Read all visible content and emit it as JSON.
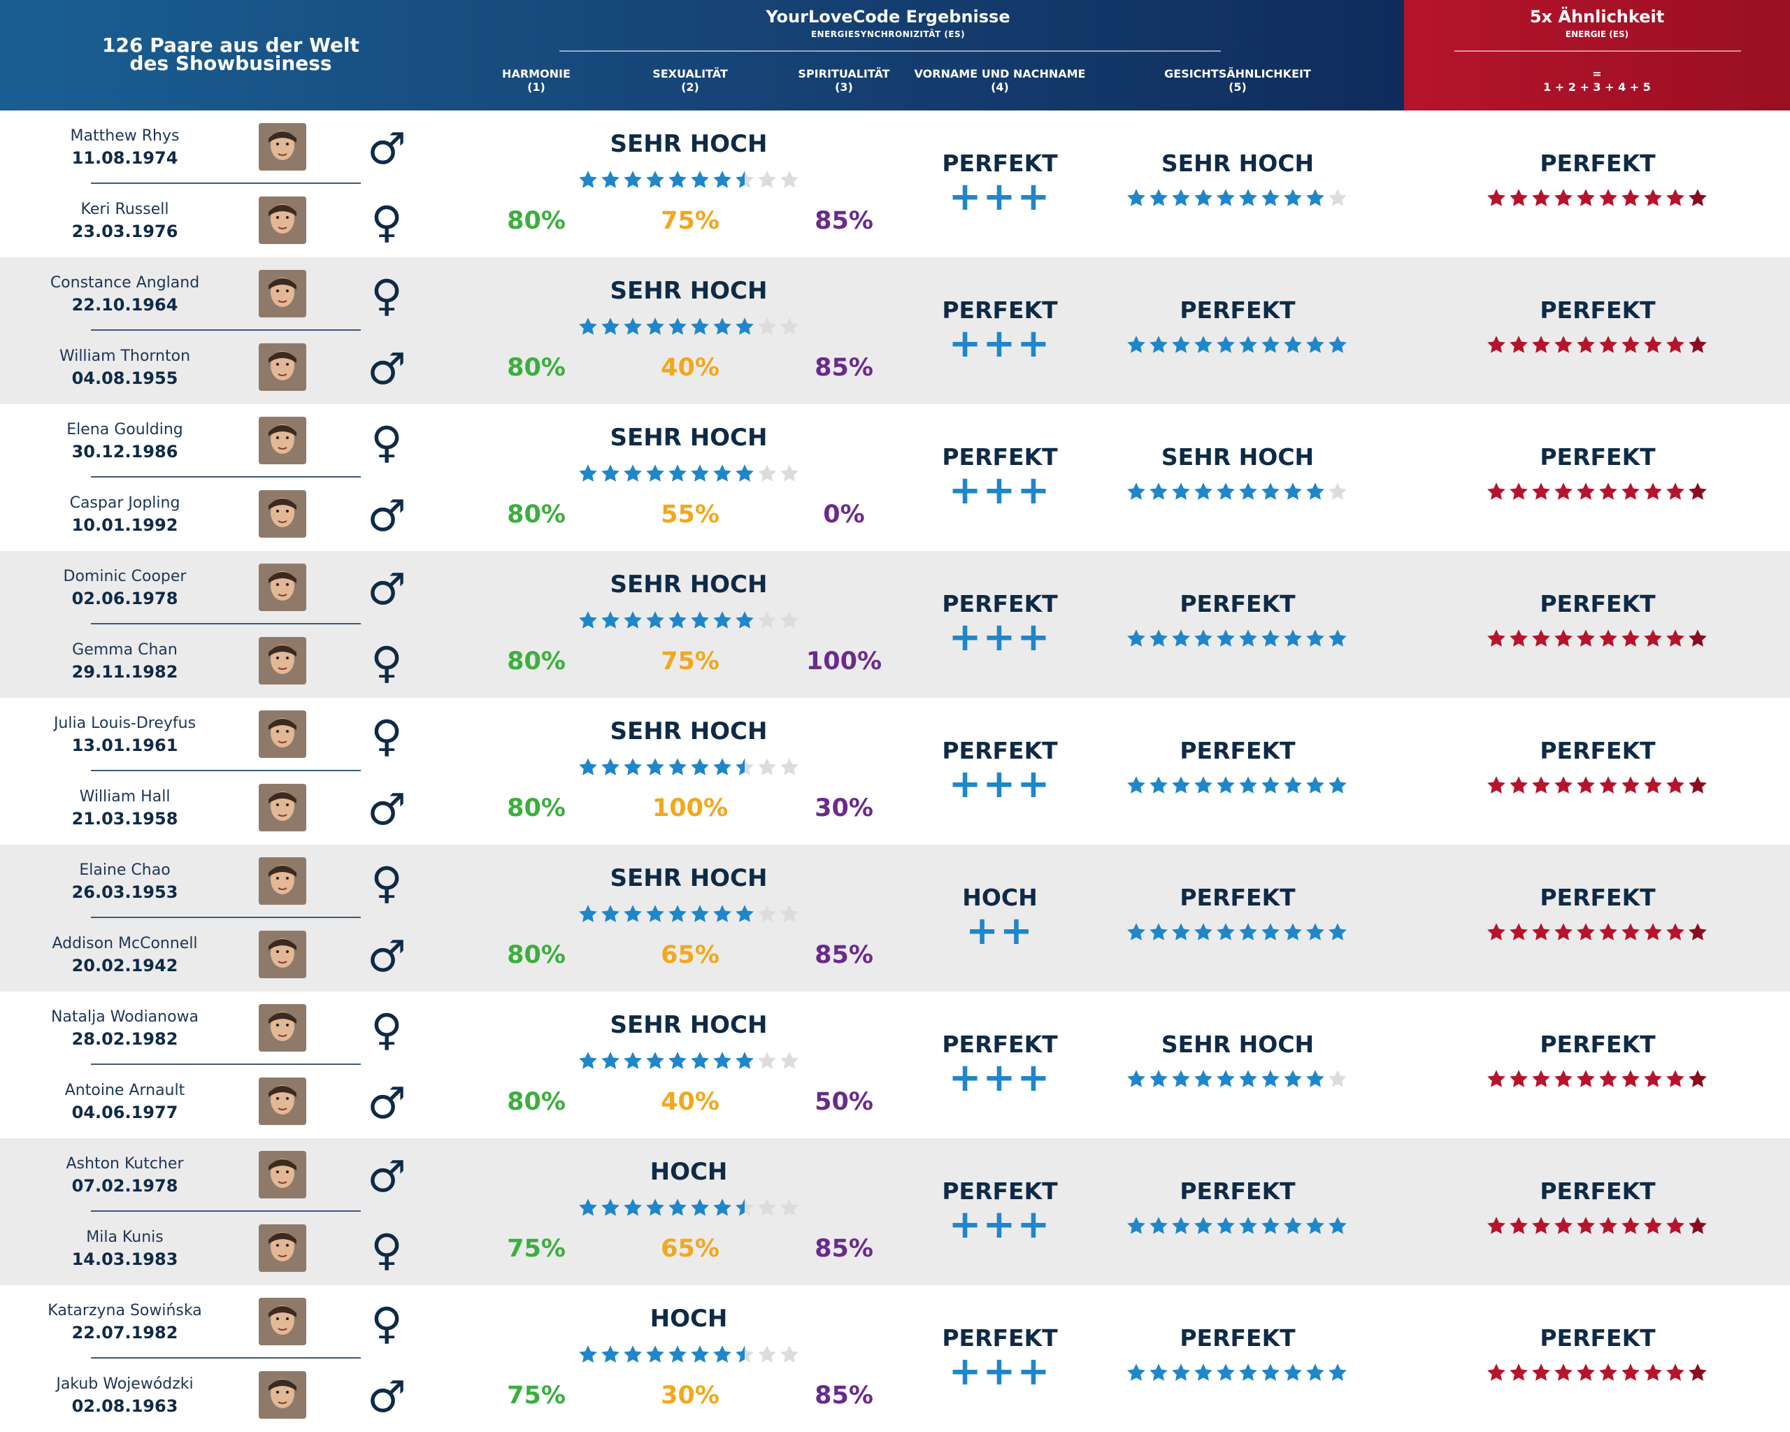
{
  "header": {
    "left_title": "126 Paare aus der Welt des Showbusiness",
    "main_title": "YourLoveCode Ergebnisse",
    "main_subtitle": "ENERGIESYNCHRONIZITÄT (ES)",
    "columns": [
      {
        "label": "HARMONIE",
        "num": "(1)"
      },
      {
        "label": "SEXUALITÄT",
        "num": "(2)"
      },
      {
        "label": "SPIRITUALITÄT",
        "num": "(3)"
      },
      {
        "label": "VORNAME UND NACHNAME",
        "num": "(4)"
      },
      {
        "label": "GESICHTSÄHNLICHKEIT",
        "num": "(5)"
      }
    ],
    "red_title": "5x Ähnlichkeit",
    "red_subtitle": "ENERGIE (ES)",
    "red_eq": "=",
    "red_formula": "1 + 2 + 3 + 4 + 5"
  },
  "colors": {
    "blue_star": "#1f86c9",
    "grey_star": "#dcdcdc",
    "red_star": "#b5142c",
    "red_star_dark": "#8a0d1f",
    "harmony": "#3cae3f",
    "sexuality": "#f3a71c",
    "spirituality": "#6a2a8c"
  },
  "pairs": [
    {
      "p1": {
        "name": "Matthew Rhys",
        "date": "11.08.1974",
        "gender": "♂",
        "gender_icon": "male-symbol-icon"
      },
      "p2": {
        "name": "Keri Russell",
        "date": "23.03.1976",
        "gender": "♀",
        "gender_icon": "female-symbol-icon"
      },
      "es_label": "SEHR HOCH",
      "es_stars": 7.5,
      "harmony": "80%",
      "sexuality": "75%",
      "spirituality": "85%",
      "name_label": "PERFEKT",
      "name_plus": "+++",
      "face_label": "SEHR HOCH",
      "face_stars": 9,
      "sim_label": "PERFEKT",
      "sim_stars": 10
    },
    {
      "p1": {
        "name": "Constance Angland",
        "date": "22.10.1964",
        "gender": "♀",
        "gender_icon": "female-symbol-icon"
      },
      "p2": {
        "name": "William Thornton",
        "date": "04.08.1955",
        "gender": "♂",
        "gender_icon": "male-symbol-icon"
      },
      "es_label": "SEHR HOCH",
      "es_stars": 8,
      "harmony": "80%",
      "sexuality": "40%",
      "spirituality": "85%",
      "name_label": "PERFEKT",
      "name_plus": "+++",
      "face_label": "PERFEKT",
      "face_stars": 10,
      "sim_label": "PERFEKT",
      "sim_stars": 10
    },
    {
      "p1": {
        "name": "Elena Goulding",
        "date": "30.12.1986",
        "gender": "♀",
        "gender_icon": "female-symbol-icon"
      },
      "p2": {
        "name": "Caspar Jopling",
        "date": "10.01.1992",
        "gender": "♂",
        "gender_icon": "male-symbol-icon"
      },
      "es_label": "SEHR HOCH",
      "es_stars": 8,
      "harmony": "80%",
      "sexuality": "55%",
      "spirituality": "0%",
      "name_label": "PERFEKT",
      "name_plus": "+++",
      "face_label": "SEHR HOCH",
      "face_stars": 9,
      "sim_label": "PERFEKT",
      "sim_stars": 10
    },
    {
      "p1": {
        "name": "Dominic Cooper",
        "date": "02.06.1978",
        "gender": "♂",
        "gender_icon": "male-symbol-icon"
      },
      "p2": {
        "name": "Gemma Chan",
        "date": "29.11.1982",
        "gender": "♀",
        "gender_icon": "female-symbol-icon"
      },
      "es_label": "SEHR HOCH",
      "es_stars": 8,
      "harmony": "80%",
      "sexuality": "75%",
      "spirituality": "100%",
      "name_label": "PERFEKT",
      "name_plus": "+++",
      "face_label": "PERFEKT",
      "face_stars": 10,
      "sim_label": "PERFEKT",
      "sim_stars": 10
    },
    {
      "p1": {
        "name": "Julia Louis-Dreyfus",
        "date": "13.01.1961",
        "gender": "♀",
        "gender_icon": "female-symbol-icon"
      },
      "p2": {
        "name": "William Hall",
        "date": "21.03.1958",
        "gender": "♂",
        "gender_icon": "male-symbol-icon"
      },
      "es_label": "SEHR HOCH",
      "es_stars": 7.5,
      "harmony": "80%",
      "sexuality": "100%",
      "spirituality": "30%",
      "name_label": "PERFEKT",
      "name_plus": "+++",
      "face_label": "PERFEKT",
      "face_stars": 10,
      "sim_label": "PERFEKT",
      "sim_stars": 10
    },
    {
      "p1": {
        "name": "Elaine Chao",
        "date": "26.03.1953",
        "gender": "♀",
        "gender_icon": "female-symbol-icon"
      },
      "p2": {
        "name": "Addison McConnell",
        "date": "20.02.1942",
        "gender": "♂",
        "gender_icon": "male-symbol-icon"
      },
      "es_label": "SEHR HOCH",
      "es_stars": 8,
      "harmony": "80%",
      "sexuality": "65%",
      "spirituality": "85%",
      "name_label": "HOCH",
      "name_plus": "++",
      "face_label": "PERFEKT",
      "face_stars": 10,
      "sim_label": "PERFEKT",
      "sim_stars": 10
    },
    {
      "p1": {
        "name": "Natalja Wodianowa",
        "date": "28.02.1982",
        "gender": "♀",
        "gender_icon": "female-symbol-icon"
      },
      "p2": {
        "name": "Antoine Arnault",
        "date": "04.06.1977",
        "gender": "♂",
        "gender_icon": "male-symbol-icon"
      },
      "es_label": "SEHR HOCH",
      "es_stars": 8,
      "harmony": "80%",
      "sexuality": "40%",
      "spirituality": "50%",
      "name_label": "PERFEKT",
      "name_plus": "+++",
      "face_label": "SEHR HOCH",
      "face_stars": 9,
      "sim_label": "PERFEKT",
      "sim_stars": 10
    },
    {
      "p1": {
        "name": "Ashton Kutcher",
        "date": "07.02.1978",
        "gender": "♂",
        "gender_icon": "male-symbol-icon"
      },
      "p2": {
        "name": "Mila Kunis",
        "date": "14.03.1983",
        "gender": "♀",
        "gender_icon": "female-symbol-icon"
      },
      "es_label": "HOCH",
      "es_stars": 7.5,
      "harmony": "75%",
      "sexuality": "65%",
      "spirituality": "85%",
      "name_label": "PERFEKT",
      "name_plus": "+++",
      "face_label": "PERFEKT",
      "face_stars": 10,
      "sim_label": "PERFEKT",
      "sim_stars": 10
    },
    {
      "p1": {
        "name": "Katarzyna Sowińska",
        "date": "22.07.1982",
        "gender": "♀",
        "gender_icon": "female-symbol-icon"
      },
      "p2": {
        "name": "Jakub Wojewódzki",
        "date": "02.08.1963",
        "gender": "♂",
        "gender_icon": "male-symbol-icon"
      },
      "es_label": "HOCH",
      "es_stars": 7.5,
      "harmony": "75%",
      "sexuality": "30%",
      "spirituality": "85%",
      "name_label": "PERFEKT",
      "name_plus": "+++",
      "face_label": "PERFEKT",
      "face_stars": 10,
      "sim_label": "PERFEKT",
      "sim_stars": 10
    }
  ]
}
